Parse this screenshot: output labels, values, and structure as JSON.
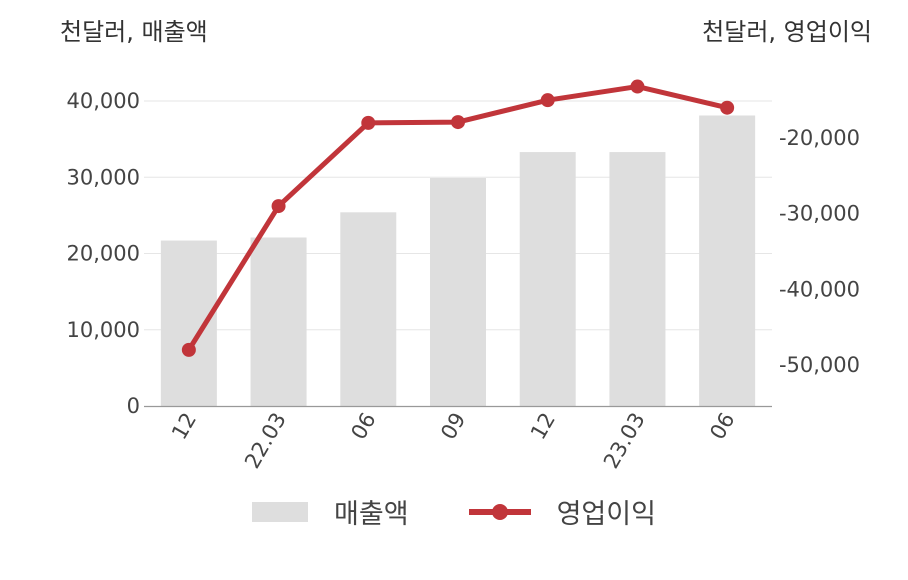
{
  "units": {
    "left": "천달러, 매출액",
    "right": "천달러, 영업이익"
  },
  "colors": {
    "bar": "#dedede",
    "line": "#c1353a",
    "grid": "#e6e6e6",
    "axis": "#999999"
  },
  "chart_data": {
    "type": "bar",
    "categories": [
      "12",
      "22.03",
      "06",
      "09",
      "12",
      "23.03",
      "06"
    ],
    "series": [
      {
        "name": "매출액",
        "type": "bar",
        "axis": "left",
        "values": [
          21700,
          22100,
          25400,
          29900,
          33300,
          33300,
          38100
        ]
      },
      {
        "name": "영업이익",
        "type": "line",
        "axis": "right",
        "values": [
          -48000,
          -29000,
          -18000,
          -17900,
          -15000,
          -13200,
          -16000
        ]
      }
    ],
    "y_left": {
      "ticks": [
        0,
        10000,
        20000,
        30000,
        40000
      ],
      "tick_labels": [
        "0",
        "10,000",
        "20,000",
        "30,000",
        "40,000"
      ]
    },
    "y_right": {
      "ticks": [
        -50000,
        -40000,
        -30000,
        -20000
      ],
      "tick_labels": [
        "-50,000",
        "-40,000",
        "-30,000",
        "-20,000"
      ]
    },
    "grid": true,
    "legend": "bottom"
  }
}
